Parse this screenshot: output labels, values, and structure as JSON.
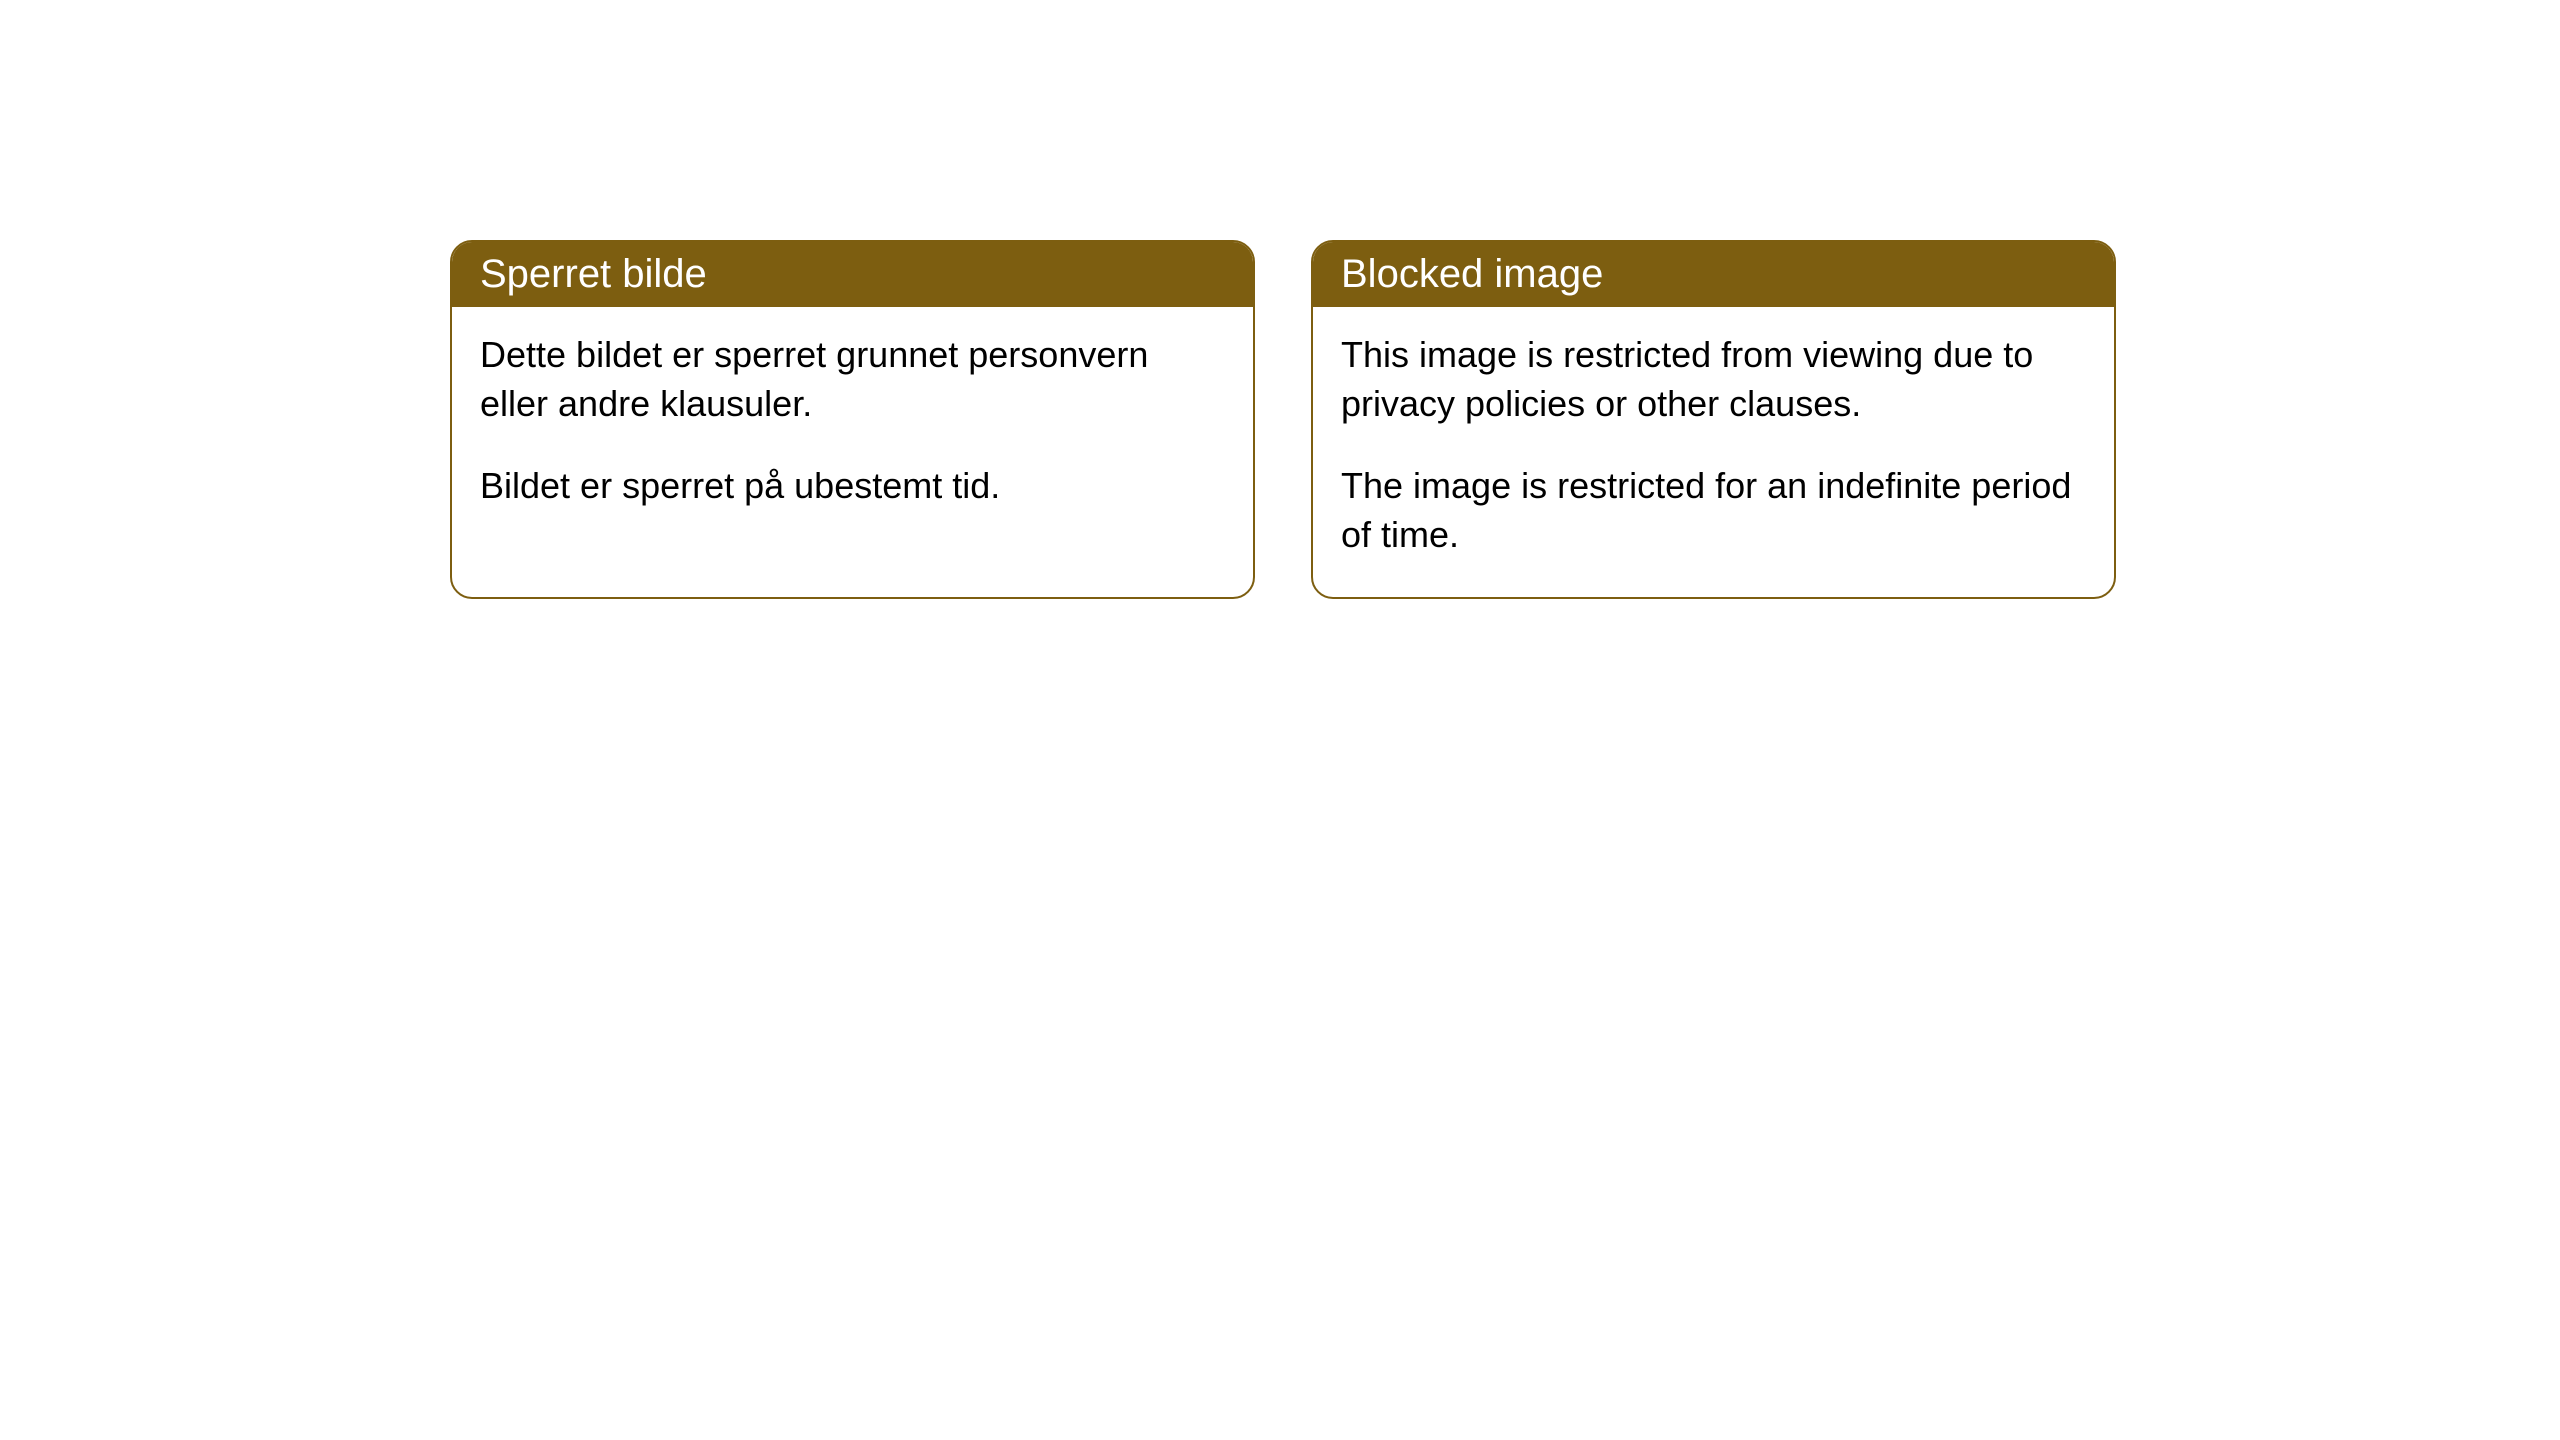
{
  "cards": [
    {
      "title": "Sperret bilde",
      "paragraph1": "Dette bildet er sperret grunnet personvern eller andre klausuler.",
      "paragraph2": "Bildet er sperret på ubestemt tid."
    },
    {
      "title": "Blocked image",
      "paragraph1": "This image is restricted from viewing due to privacy policies or other clauses.",
      "paragraph2": "The image is restricted for an indefinite period of time."
    }
  ],
  "styling": {
    "header_background_color": "#7d5e10",
    "header_text_color": "#ffffff",
    "border_color": "#7d5e10",
    "body_background_color": "#ffffff",
    "body_text_color": "#000000",
    "border_radius": 22,
    "header_fontsize": 40,
    "body_fontsize": 36
  }
}
